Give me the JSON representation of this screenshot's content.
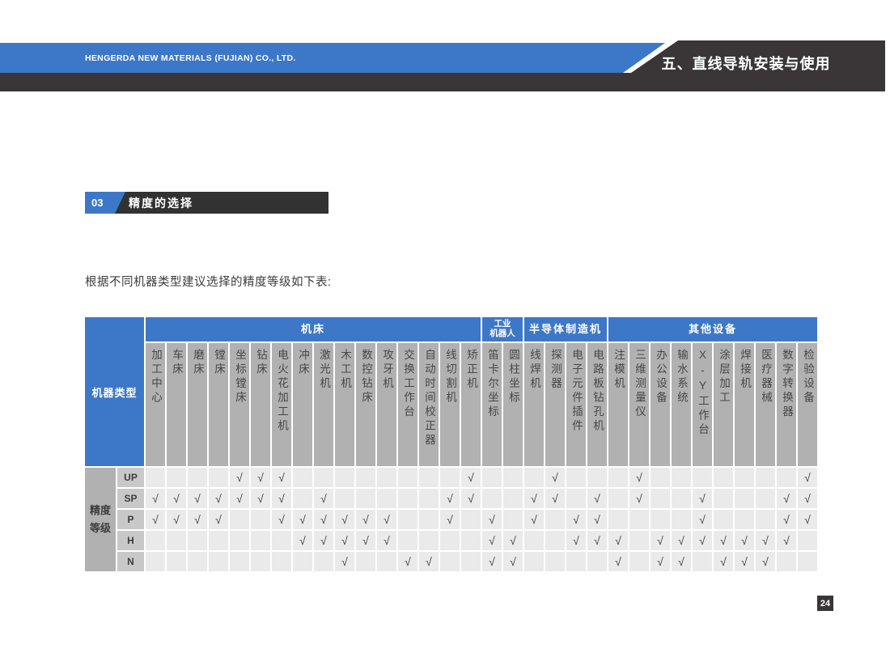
{
  "header": {
    "company": "HENGERDA NEW MATERIALS (FUJIAN) CO., LTD.",
    "chapter_title": "五、直线导轨安装与使用"
  },
  "section": {
    "number": "03",
    "title": "精度的选择"
  },
  "intro_text": "根据不同机器类型建议选择的精度等级如下表:",
  "page_number": "24",
  "colors": {
    "accent_blue": "#3d77c8",
    "banner_dark": "#3a3637",
    "section_dark": "#323232",
    "header_cell_gray": "#b1b1b1",
    "row_label_gray": "#c8c8c8",
    "data_cell_gray": "#eaeaea"
  },
  "table": {
    "corner_label": "机器类型",
    "row_group_label": "精度等级",
    "check_symbol": "√",
    "groups": [
      {
        "label": "机床",
        "span": 16,
        "lines": [
          "机床"
        ]
      },
      {
        "label": "工业机器人",
        "span": 2,
        "lines": [
          "工业",
          "机器人"
        ]
      },
      {
        "label": "半导体制造机",
        "span": 4,
        "lines": [
          "半导体制造机"
        ]
      },
      {
        "label": "其他设备",
        "span": 10,
        "lines": [
          "其他设备"
        ]
      }
    ],
    "columns": [
      "加工中心",
      "车床",
      "磨床",
      "镗床",
      "坐标镗床",
      "钻床",
      "电火花加工机",
      "冲床",
      "激光机",
      "木工机",
      "数控钻床",
      "攻牙机",
      "交换工作台",
      "自动时间校正器",
      "线切割机",
      "矫正机",
      "笛卡尔坐标",
      "圆柱坐标",
      "线焊机",
      "探测器",
      "电子元件插件",
      "电路板钻孔机",
      "注模机",
      "三维测量仪",
      "办公设备",
      "输水系统",
      "X-Y工作台",
      "涂层加工",
      "焊接机",
      "医疗器械",
      "数字转换器",
      "检验设备"
    ],
    "rows": [
      {
        "label": "UP",
        "checks": [
          5,
          6,
          7,
          16,
          20,
          24,
          32
        ]
      },
      {
        "label": "SP",
        "checks": [
          1,
          2,
          3,
          4,
          5,
          6,
          7,
          9,
          15,
          16,
          19,
          20,
          22,
          24,
          27,
          31,
          32
        ]
      },
      {
        "label": "P",
        "checks": [
          1,
          2,
          3,
          4,
          7,
          8,
          9,
          10,
          11,
          12,
          15,
          17,
          19,
          21,
          22,
          27,
          31,
          32
        ]
      },
      {
        "label": "H",
        "checks": [
          8,
          9,
          10,
          11,
          12,
          17,
          18,
          21,
          22,
          23,
          25,
          26,
          27,
          28,
          29,
          30,
          31
        ]
      },
      {
        "label": "N",
        "checks": [
          10,
          13,
          14,
          17,
          18,
          23,
          25,
          26,
          28,
          29,
          30
        ]
      }
    ]
  }
}
